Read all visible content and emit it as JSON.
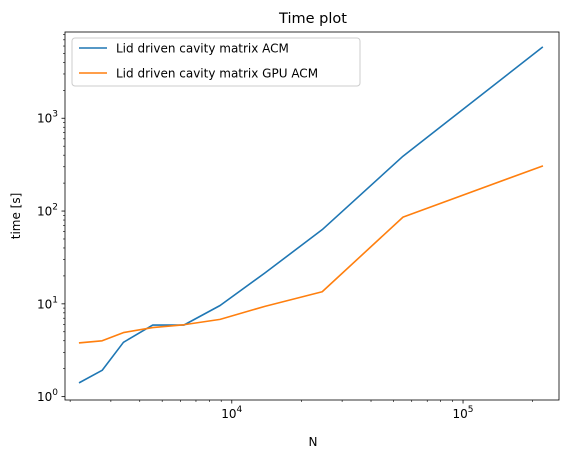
{
  "chart_data": {
    "type": "line",
    "title": "Time plot",
    "xlabel": "N",
    "ylabel": "time [s]",
    "xscale": "log",
    "yscale": "log",
    "xlim": [
      1900,
      260000
    ],
    "ylim": [
      0.92,
      8500
    ],
    "grid": false,
    "legend_position": "top-left",
    "xticks": [
      {
        "value": 10000,
        "base": "10",
        "exp": "4"
      },
      {
        "value": 100000,
        "base": "10",
        "exp": "5"
      }
    ],
    "yticks": [
      {
        "value": 1,
        "base": "10",
        "exp": "0"
      },
      {
        "value": 10,
        "base": "10",
        "exp": "1"
      },
      {
        "value": 100,
        "base": "10",
        "exp": "2"
      },
      {
        "value": 1000,
        "base": "10",
        "exp": "3"
      }
    ],
    "series": [
      {
        "name": "Lid driven cavity matrix ACM",
        "color": "#1f77b4",
        "x": [
          2200,
          2750,
          3400,
          4550,
          6200,
          8900,
          13900,
          24600,
          55000,
          220000
        ],
        "y": [
          1.42,
          1.92,
          3.85,
          5.9,
          5.9,
          9.6,
          21.5,
          63,
          390,
          5800
        ]
      },
      {
        "name": "Lid driven cavity matrix GPU ACM",
        "color": "#ff7f0e",
        "x": [
          2200,
          2750,
          3400,
          4550,
          6200,
          8900,
          13900,
          24600,
          55000,
          220000
        ],
        "y": [
          3.8,
          4.0,
          4.9,
          5.55,
          5.95,
          6.8,
          9.4,
          13.5,
          86,
          305
        ]
      }
    ]
  }
}
